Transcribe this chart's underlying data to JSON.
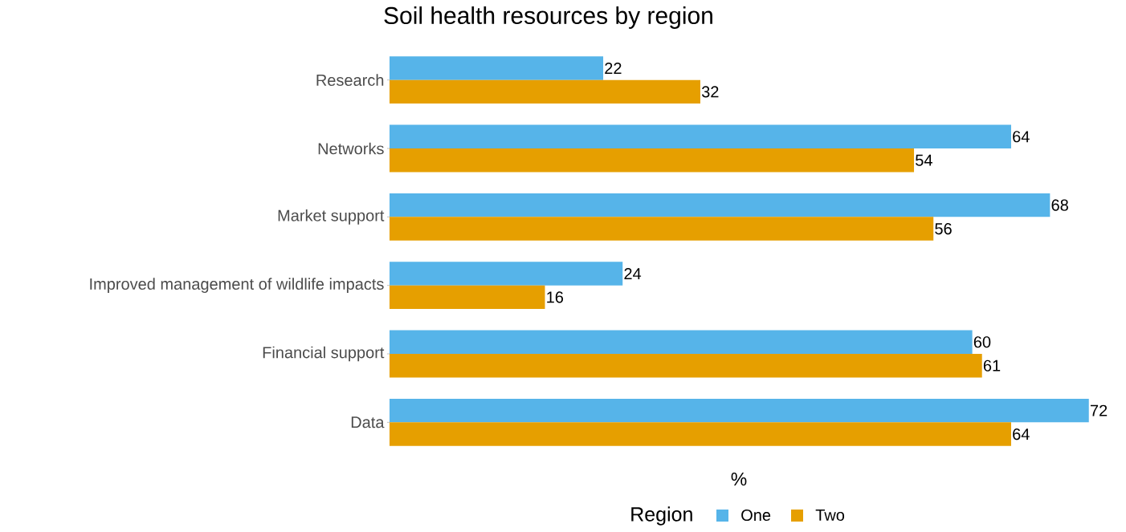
{
  "chart_data": {
    "type": "bar",
    "orientation": "horizontal",
    "title": "Soil health resources by region",
    "xlabel": "%",
    "legend_title": "Region",
    "legend": "bottom",
    "categories": [
      "Research",
      "Networks",
      "Market support",
      "Improved management of wildlife impacts",
      "Financial support",
      "Data"
    ],
    "series": [
      {
        "name": "One",
        "color": "#56b4e9",
        "values": [
          22,
          64,
          68,
          24,
          60,
          72
        ]
      },
      {
        "name": "Two",
        "color": "#e69f00",
        "values": [
          32,
          54,
          56,
          16,
          61,
          64
        ]
      }
    ],
    "data_labels": true,
    "tick_labels": "y",
    "grid": false
  }
}
